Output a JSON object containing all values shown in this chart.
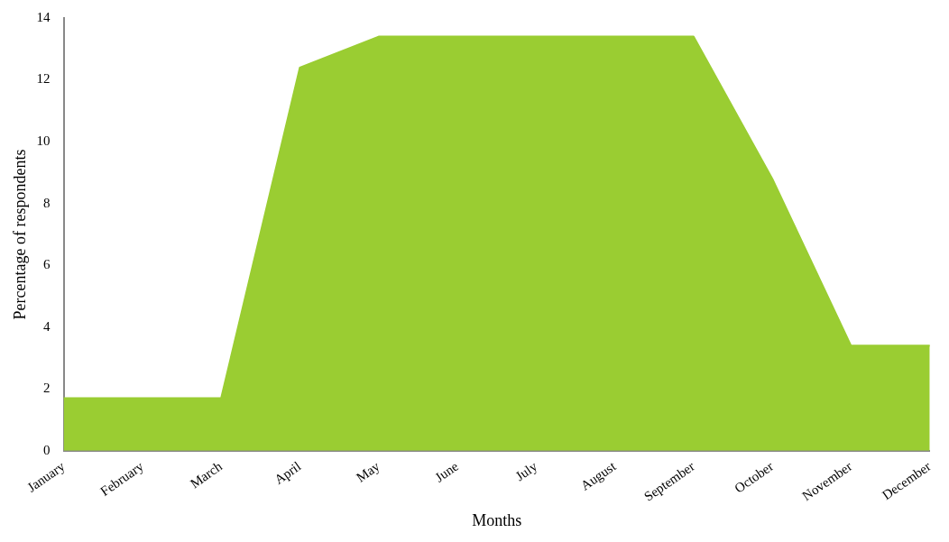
{
  "chart_data": {
    "type": "area",
    "xlabel": "Months",
    "ylabel": "Percentage of respondents",
    "categories": [
      "January",
      "February",
      "March",
      "April",
      "May",
      "June",
      "July",
      "August",
      "September",
      "October",
      "November",
      "December"
    ],
    "values": [
      1.7,
      1.7,
      1.7,
      12.4,
      13.4,
      13.4,
      13.4,
      13.4,
      13.4,
      8.8,
      3.4,
      3.4
    ],
    "color": "#9acd32",
    "ylim": [
      0,
      14
    ],
    "yticks": [
      0,
      2,
      4,
      6,
      8,
      10,
      12,
      14
    ],
    "grid": false,
    "legend": false
  }
}
